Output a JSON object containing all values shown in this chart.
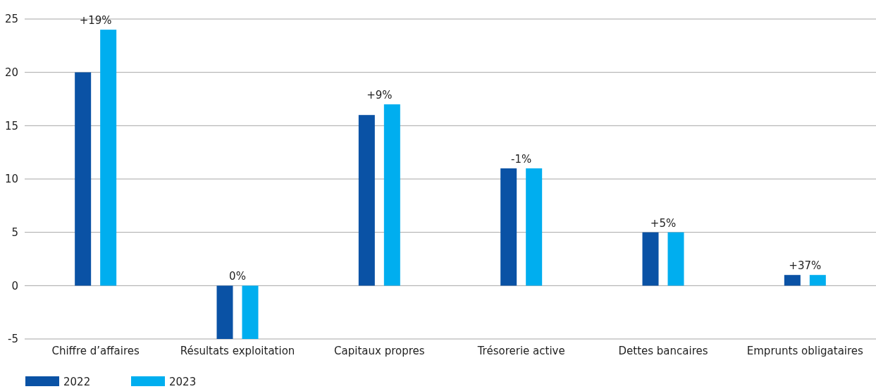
{
  "chart_data": {
    "type": "bar",
    "categories": [
      "Chiffre d’affaires",
      "Résultats exploitation",
      "Capitaux propres",
      "Trésorerie active",
      "Dettes bancaires",
      "Emprunts obligataires"
    ],
    "series": [
      {
        "name": "2022",
        "color": "#0a52a5",
        "values": [
          20,
          -5,
          16,
          11,
          5,
          1
        ]
      },
      {
        "name": "2023",
        "color": "#00aeef",
        "values": [
          24,
          -5,
          17,
          11,
          5,
          1
        ]
      }
    ],
    "ylim": [
      -5,
      25
    ],
    "yticks": [
      -5,
      0,
      5,
      10,
      15,
      20,
      25
    ],
    "grid": "y",
    "legend": "bottom left",
    "annotations": [
      "+19%",
      "0%",
      "+9%",
      "-1%",
      "+5%",
      "+37%"
    ]
  }
}
